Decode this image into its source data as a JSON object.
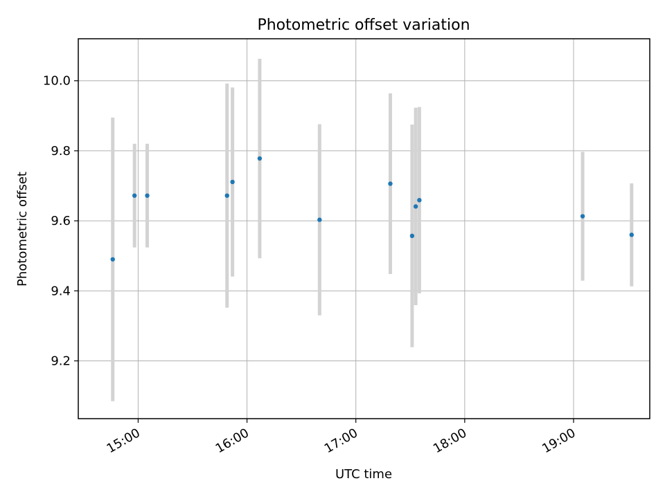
{
  "chart_data": {
    "type": "scatter",
    "title": "Photometric offset variation",
    "xlabel": "UTC time",
    "ylabel": "Photometric offset",
    "x_tick_labels": [
      "15:00",
      "16:00",
      "17:00",
      "18:00",
      "19:00"
    ],
    "y_tick_labels": [
      "9.2",
      "9.4",
      "9.6",
      "9.8",
      "10.0"
    ],
    "x_ticks": [
      "15:00",
      "16:00",
      "17:00",
      "18:00",
      "19:00"
    ],
    "y_ticks": [
      9.2,
      9.4,
      9.6,
      9.8,
      10.0
    ],
    "xlim": [
      "14:27",
      "19:42"
    ],
    "ylim": [
      9.035,
      10.12
    ],
    "grid": true,
    "series": [
      {
        "marker_color": "#1f77b4",
        "errorbar_color": "#d3d3d3",
        "points": [
          {
            "x": "14:46",
            "y": 9.49,
            "yerr": 0.405
          },
          {
            "x": "14:58",
            "y": 9.672,
            "yerr": 0.148
          },
          {
            "x": "15:05",
            "y": 9.672,
            "yerr": 0.148
          },
          {
            "x": "15:49",
            "y": 9.672,
            "yerr": 0.32
          },
          {
            "x": "15:52",
            "y": 9.711,
            "yerr": 0.27
          },
          {
            "x": "16:07",
            "y": 9.778,
            "yerr": 0.285
          },
          {
            "x": "16:40",
            "y": 9.603,
            "yerr": 0.273
          },
          {
            "x": "17:19",
            "y": 9.706,
            "yerr": 0.258
          },
          {
            "x": "17:31",
            "y": 9.557,
            "yerr": 0.318
          },
          {
            "x": "17:33",
            "y": 9.641,
            "yerr": 0.282
          },
          {
            "x": "17:35",
            "y": 9.659,
            "yerr": 0.266
          },
          {
            "x": "19:05",
            "y": 9.613,
            "yerr": 0.184
          },
          {
            "x": "19:32",
            "y": 9.56,
            "yerr": 0.147
          }
        ]
      }
    ]
  }
}
